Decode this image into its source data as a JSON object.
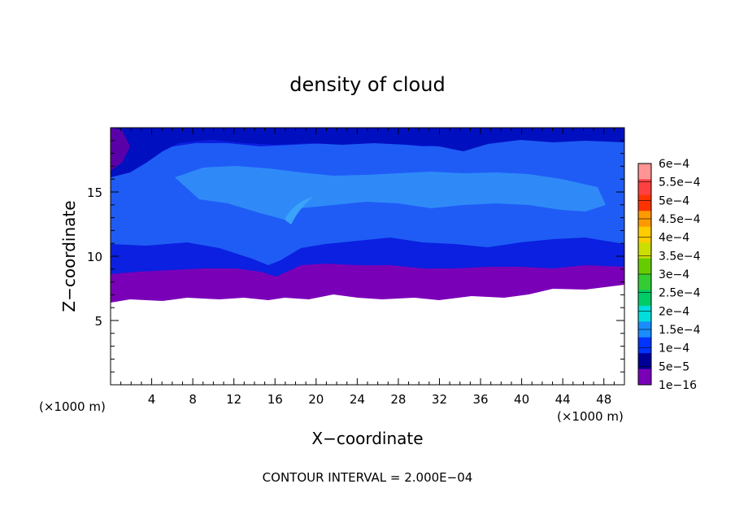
{
  "chart_data": {
    "type": "heatmap",
    "title": "density of cloud",
    "xlabel": "X−coordinate",
    "ylabel": "Z−coordinate",
    "x_unit": "(×1000 m)",
    "y_unit": "(×1000 m)",
    "xlim": [
      0,
      50
    ],
    "ylim": [
      0,
      20
    ],
    "xticks": [
      4,
      8,
      12,
      16,
      20,
      24,
      28,
      32,
      36,
      40,
      44,
      48
    ],
    "yticks": [
      5,
      10,
      15
    ],
    "colorbar": {
      "labels": [
        "6e−4",
        "5.5e−4",
        "5e−4",
        "4.5e−4",
        "4e−4",
        "3.5e−4",
        "3e−4",
        "2.5e−4",
        "2e−4",
        "1.5e−4",
        "1e−4",
        "5e−5",
        "1e−16"
      ],
      "colors": [
        "#ff9494",
        "#ff4040",
        "#ff3300",
        "#ff9900",
        "#ffcc00",
        "#ccdd00",
        "#66cc00",
        "#33cc33",
        "#00cc66",
        "#00dddd",
        "#1a8cff",
        "#0033ff",
        "#000099",
        "#7a00b8"
      ]
    },
    "cloud_layers": [
      {
        "name": "purple base",
        "z_range": [
          6.6,
          9.5
        ],
        "value": "1e−16",
        "color": "#7a00b8"
      },
      {
        "name": "dark blue",
        "z_range": [
          9.0,
          10.8
        ],
        "value": "5e−5",
        "color": "#0b20e0"
      },
      {
        "name": "blue",
        "z_range": [
          10.5,
          18.8
        ],
        "value": "1e−4",
        "color": "#1f5cf5"
      },
      {
        "name": "light blue core",
        "z_range": [
          13.5,
          17.0
        ],
        "value": "1.5e−4",
        "color": "#2f8af8"
      },
      {
        "name": "dark top",
        "z_range": [
          18.3,
          19.8
        ],
        "value": "5e−5",
        "color": "#0010c0"
      }
    ],
    "annotation": "CONTOUR INTERVAL = 2.000E−04"
  }
}
